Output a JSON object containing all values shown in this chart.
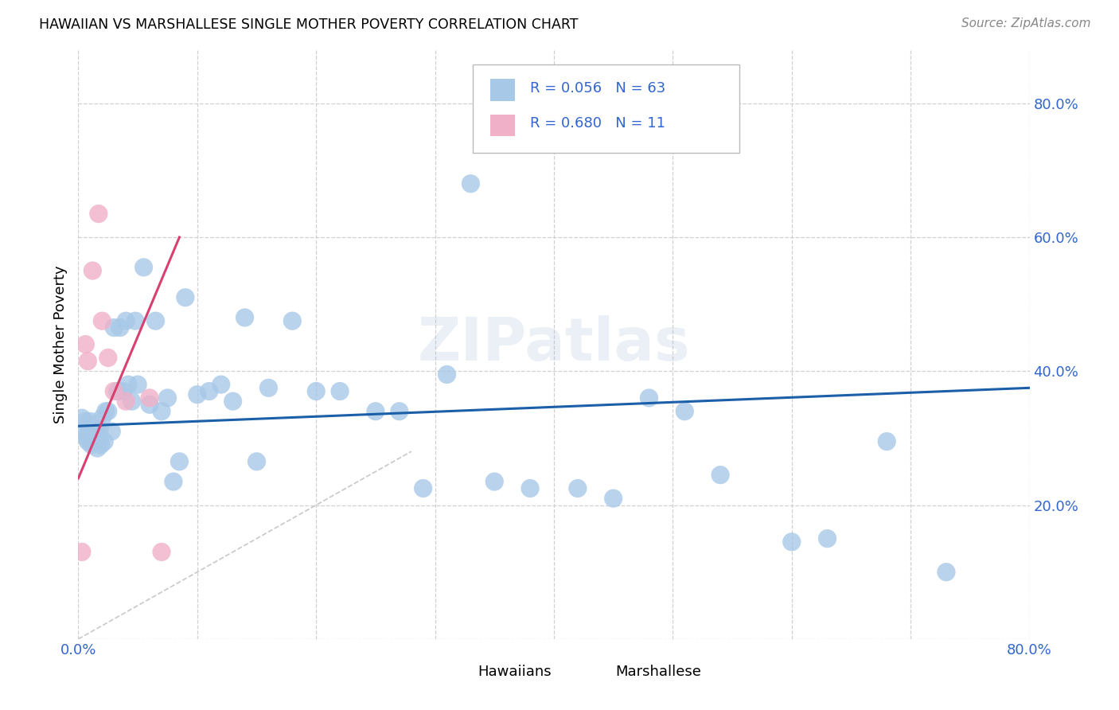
{
  "title": "HAWAIIAN VS MARSHALLESE SINGLE MOTHER POVERTY CORRELATION CHART",
  "source": "Source: ZipAtlas.com",
  "ylabel": "Single Mother Poverty",
  "xlim": [
    0.0,
    0.8
  ],
  "ylim": [
    0.0,
    0.88
  ],
  "hawaiian_R": 0.056,
  "hawaiian_N": 63,
  "marshallese_R": 0.68,
  "marshallese_N": 11,
  "hawaiian_color": "#a8c8e8",
  "marshallese_color": "#f0b0c8",
  "hawaiian_line_color": "#1a5fa8",
  "marshallese_line_color": "#d84070",
  "diagonal_color": "#c8c8c8",
  "grid_color": "#d0d0d0",
  "hawaiians_x": [
    0.003,
    0.005,
    0.006,
    0.007,
    0.008,
    0.009,
    0.01,
    0.011,
    0.012,
    0.013,
    0.015,
    0.016,
    0.017,
    0.018,
    0.019,
    0.02,
    0.022,
    0.023,
    0.025,
    0.028,
    0.03,
    0.033,
    0.035,
    0.038,
    0.04,
    0.042,
    0.045,
    0.048,
    0.05,
    0.055,
    0.06,
    0.065,
    0.07,
    0.075,
    0.08,
    0.085,
    0.09,
    0.1,
    0.11,
    0.12,
    0.13,
    0.14,
    0.15,
    0.16,
    0.18,
    0.2,
    0.22,
    0.25,
    0.27,
    0.29,
    0.31,
    0.33,
    0.35,
    0.38,
    0.42,
    0.45,
    0.48,
    0.51,
    0.54,
    0.6,
    0.63,
    0.68,
    0.73
  ],
  "hawaiians_y": [
    0.33,
    0.31,
    0.325,
    0.3,
    0.295,
    0.31,
    0.325,
    0.29,
    0.305,
    0.295,
    0.31,
    0.285,
    0.305,
    0.315,
    0.29,
    0.33,
    0.295,
    0.34,
    0.34,
    0.31,
    0.465,
    0.37,
    0.465,
    0.37,
    0.475,
    0.38,
    0.355,
    0.475,
    0.38,
    0.555,
    0.35,
    0.475,
    0.34,
    0.36,
    0.235,
    0.265,
    0.51,
    0.365,
    0.37,
    0.38,
    0.355,
    0.48,
    0.265,
    0.375,
    0.475,
    0.37,
    0.37,
    0.34,
    0.34,
    0.225,
    0.395,
    0.68,
    0.235,
    0.225,
    0.225,
    0.21,
    0.36,
    0.34,
    0.245,
    0.145,
    0.15,
    0.295,
    0.1
  ],
  "marshallese_x": [
    0.003,
    0.006,
    0.008,
    0.012,
    0.017,
    0.02,
    0.025,
    0.03,
    0.04,
    0.06,
    0.07
  ],
  "marshallese_y": [
    0.13,
    0.44,
    0.415,
    0.55,
    0.635,
    0.475,
    0.42,
    0.37,
    0.355,
    0.36,
    0.13
  ],
  "haw_line_x0": 0.0,
  "haw_line_y0": 0.318,
  "haw_line_x1": 0.8,
  "haw_line_y1": 0.375,
  "mar_line_x0": 0.0,
  "mar_line_y0": 0.24,
  "mar_line_x1": 0.085,
  "mar_line_y1": 0.6
}
